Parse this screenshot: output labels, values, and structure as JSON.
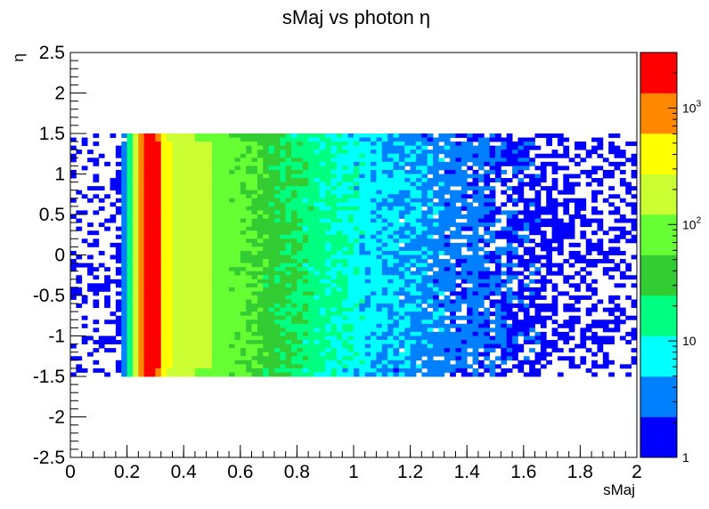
{
  "chart_data": {
    "type": "heatmap",
    "title": "sMaj vs photon  η",
    "xlabel": "sMaj",
    "ylabel": "η",
    "xlim": [
      0,
      2
    ],
    "ylim": [
      -2.5,
      2.5
    ],
    "x_ticks": [
      "0",
      "0.2",
      "0.4",
      "0.6",
      "0.8",
      "1",
      "1.2",
      "1.4",
      "1.6",
      "1.8",
      "2"
    ],
    "y_ticks": [
      "-2.5",
      "-2",
      "-1.5",
      "-1",
      "-0.5",
      "0",
      "0.5",
      "1",
      "1.5",
      "2",
      "2.5"
    ],
    "z_scale": "log",
    "zlim": [
      1,
      3000
    ],
    "z_ticks": [
      {
        "value": 1,
        "base": "1",
        "exp": ""
      },
      {
        "value": 10,
        "base": "10",
        "exp": ""
      },
      {
        "value": 100,
        "base": "10",
        "exp": "2"
      },
      {
        "value": 1000,
        "base": "10",
        "exp": "3"
      }
    ],
    "palette": [
      "#0000ff",
      "#0080ff",
      "#00ffff",
      "#00ff80",
      "#33cc33",
      "#66ff33",
      "#ccff33",
      "#ffff00",
      "#ff8800",
      "#ff0000"
    ],
    "bins": {
      "x_start": 0.0,
      "x_width": 0.02,
      "eta_rows": [
        1.475,
        1.425,
        1.375,
        1.325,
        1.275,
        1.225,
        1.175,
        1.125,
        1.075,
        1.025,
        0.975,
        0.925,
        0.875,
        0.825,
        0.775,
        0.725,
        0.675,
        0.625,
        0.575,
        0.525,
        0.475,
        0.425,
        0.375,
        0.325,
        0.275,
        0.225,
        0.175,
        0.125,
        0.075,
        0.025,
        -0.025,
        -0.075,
        -0.125,
        -0.175,
        -0.225,
        -0.275,
        -0.325,
        -0.375,
        -0.425,
        -0.475,
        -0.525,
        -0.575,
        -0.625,
        -0.675,
        -0.725,
        -0.775,
        -0.825,
        -0.875,
        -0.925,
        -0.975,
        -1.025,
        -1.075,
        -1.125,
        -1.175,
        -1.225,
        -1.275,
        -1.325,
        -1.375,
        -1.425,
        -1.475
      ],
      "profile_x": [
        0.16,
        0.2,
        0.22,
        0.24,
        0.26,
        0.28,
        0.3,
        0.32,
        0.34,
        0.4,
        0.5,
        0.6,
        0.7,
        0.8,
        0.9,
        1.0,
        1.1,
        1.2,
        1.4,
        1.6,
        1.8,
        2.0
      ],
      "profile_counts": [
        1,
        5,
        60,
        600,
        2600,
        3000,
        2400,
        900,
        300,
        220,
        120,
        70,
        40,
        22,
        14,
        9,
        6,
        4.5,
        3,
        1.8,
        1.2,
        1
      ]
    }
  }
}
